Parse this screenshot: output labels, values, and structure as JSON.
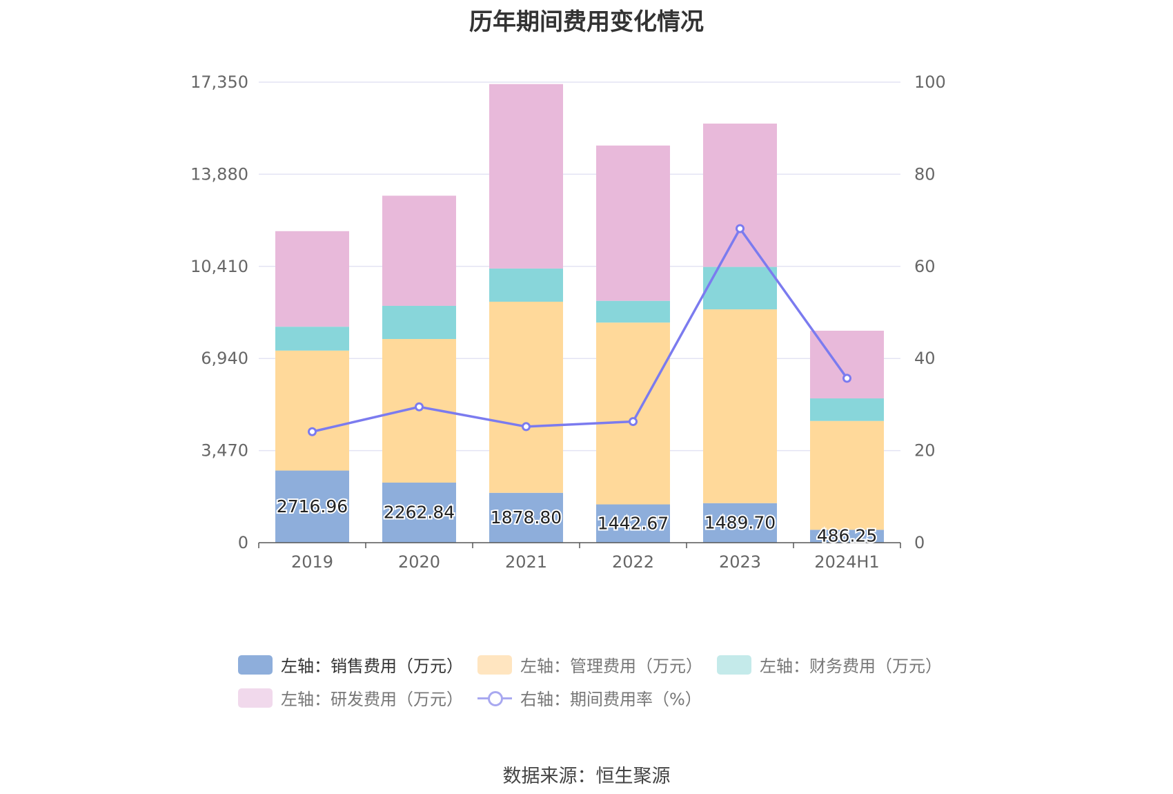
{
  "title": "历年期间费用变化情况",
  "source": "数据来源：恒生聚源",
  "legend": [
    {
      "label": "左轴：销售费用（万元）",
      "color": "#8eaedb",
      "type": "bar"
    },
    {
      "label": "左轴：管理费用（万元）",
      "color": "#ffe5c0",
      "type": "bar"
    },
    {
      "label": "左轴：财务费用（万元）",
      "color": "#c4eaea",
      "type": "bar"
    },
    {
      "label": "左轴：研发费用（万元）",
      "color": "#f1d9ec",
      "type": "bar"
    },
    {
      "label": "右轴：期间费用率（%）",
      "color": "#a8a8f0",
      "type": "line"
    }
  ],
  "chart_data": {
    "type": "bar",
    "title": "历年期间费用变化情况",
    "categories": [
      "2019",
      "2020",
      "2021",
      "2022",
      "2023",
      "2024H1"
    ],
    "y_left": {
      "ticks": [
        "0",
        "3,470",
        "6,940",
        "10,410",
        "13,880",
        "17,350"
      ],
      "min": 0,
      "max": 17350
    },
    "y_right": {
      "ticks": [
        "0",
        "20",
        "40",
        "60",
        "80",
        "100"
      ],
      "min": 0,
      "max": 100
    },
    "series": [
      {
        "name": "左轴：销售费用（万元）",
        "axis": "left",
        "color": "#8eaedb",
        "values": [
          2716.96,
          2262.84,
          1878.8,
          1442.67,
          1489.7,
          486.25
        ],
        "labels": [
          "2716.96",
          "2262.84",
          "1878.80",
          "1442.67",
          "1489.70",
          "486.25"
        ]
      },
      {
        "name": "左轴：管理费用（万元）",
        "axis": "left",
        "color": "#ffd99a",
        "values": [
          4520,
          5410,
          7200,
          6850,
          7300,
          4100
        ]
      },
      {
        "name": "左轴：财务费用（万元）",
        "axis": "left",
        "color": "#88d6da",
        "values": [
          900,
          1250,
          1250,
          820,
          1600,
          850
        ]
      },
      {
        "name": "左轴：研发费用（万元）",
        "axis": "left",
        "color": "#e8b9da",
        "values": [
          3600,
          4150,
          6950,
          5850,
          5400,
          2550
        ]
      },
      {
        "name": "右轴：期间费用率（%）",
        "axis": "right",
        "type": "line",
        "color": "#7b7bef",
        "values": [
          24.1,
          29.5,
          25.2,
          26.3,
          68.2,
          35.7
        ]
      }
    ]
  }
}
